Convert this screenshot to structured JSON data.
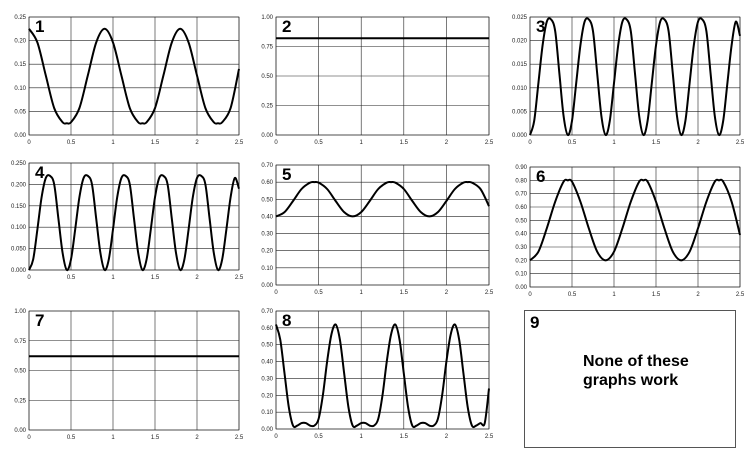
{
  "chart_data": [
    {
      "id": "1",
      "label": "1",
      "type": "line",
      "x_range": [
        0,
        2.5
      ],
      "ylim": [
        0,
        0.25
      ],
      "x_ticks": [
        "0",
        "0.5",
        "1",
        "1.5",
        "2",
        "2.5"
      ],
      "y_ticks": [
        "0.00",
        "0.05",
        "0.10",
        "0.15",
        "0.20",
        "0.25"
      ],
      "x": [
        0,
        0.1,
        0.2,
        0.3,
        0.4,
        0.45,
        0.5,
        0.6,
        0.7,
        0.8,
        0.9,
        1.0,
        1.1,
        1.2,
        1.3,
        1.35,
        1.4,
        1.5,
        1.6,
        1.7,
        1.8,
        1.9,
        2.0,
        2.1,
        2.2,
        2.25,
        2.3,
        2.4,
        2.5
      ],
      "y": [
        0.225,
        0.196,
        0.126,
        0.057,
        0.027,
        0.025,
        0.027,
        0.057,
        0.126,
        0.196,
        0.225,
        0.196,
        0.126,
        0.057,
        0.027,
        0.025,
        0.027,
        0.057,
        0.126,
        0.196,
        0.225,
        0.196,
        0.126,
        0.057,
        0.027,
        0.025,
        0.027,
        0.057,
        0.14
      ]
    },
    {
      "id": "2",
      "label": "2",
      "type": "line",
      "x_range": [
        0,
        2.5
      ],
      "ylim": [
        0,
        1.0
      ],
      "x_ticks": [
        "0",
        "0.5",
        "1",
        "1.5",
        "2",
        "2.5"
      ],
      "y_ticks": [
        "0.00",
        "0.25",
        "0.50",
        "0.75",
        "1.00"
      ],
      "x": [
        0,
        2.5
      ],
      "y": [
        0.82,
        0.82
      ]
    },
    {
      "id": "3",
      "label": "3",
      "type": "line",
      "x_range": [
        0,
        2.5
      ],
      "ylim": [
        0,
        0.025
      ],
      "x_ticks": [
        "0",
        "0.5",
        "1",
        "1.5",
        "2",
        "2.5"
      ],
      "y_ticks": [
        "0.000",
        "0.005",
        "0.010",
        "0.015",
        "0.020",
        "0.025"
      ],
      "x": [
        0,
        0.05,
        0.1,
        0.15,
        0.2,
        0.25,
        0.3,
        0.35,
        0.4,
        0.45,
        0.5,
        0.55,
        0.6,
        0.65,
        0.7,
        0.75,
        0.8,
        0.85,
        0.9,
        0.95,
        1.0,
        1.05,
        1.1,
        1.15,
        1.2,
        1.25,
        1.3,
        1.35,
        1.4,
        1.45,
        1.5,
        1.55,
        1.6,
        1.65,
        1.7,
        1.75,
        1.8,
        1.85,
        1.9,
        1.95,
        2.0,
        2.05,
        2.1,
        2.15,
        2.2,
        2.25,
        2.3,
        2.35,
        2.4,
        2.45,
        2.5
      ],
      "y": [
        0,
        0.003,
        0.011,
        0.019,
        0.024,
        0.0245,
        0.022,
        0.013,
        0.004,
        0.0,
        0.003,
        0.011,
        0.019,
        0.024,
        0.0245,
        0.022,
        0.013,
        0.004,
        0.0,
        0.003,
        0.011,
        0.019,
        0.024,
        0.0245,
        0.022,
        0.013,
        0.004,
        0.0,
        0.003,
        0.011,
        0.019,
        0.024,
        0.0245,
        0.022,
        0.013,
        0.004,
        0.0,
        0.003,
        0.011,
        0.019,
        0.024,
        0.0245,
        0.022,
        0.013,
        0.004,
        0.0,
        0.003,
        0.011,
        0.019,
        0.024,
        0.021
      ]
    },
    {
      "id": "4",
      "label": "4",
      "type": "line",
      "x_range": [
        0,
        2.5
      ],
      "ylim": [
        0,
        0.25
      ],
      "x_ticks": [
        "0",
        "0.5",
        "1",
        "1.5",
        "2",
        "2.5"
      ],
      "y_ticks": [
        "0.000",
        "0.050",
        "0.100",
        "0.150",
        "0.200",
        "0.250"
      ],
      "x": [
        0,
        0.05,
        0.1,
        0.15,
        0.2,
        0.25,
        0.3,
        0.35,
        0.4,
        0.45,
        0.5,
        0.55,
        0.6,
        0.65,
        0.7,
        0.75,
        0.8,
        0.85,
        0.9,
        0.95,
        1.0,
        1.05,
        1.1,
        1.15,
        1.2,
        1.25,
        1.3,
        1.35,
        1.4,
        1.45,
        1.5,
        1.55,
        1.6,
        1.65,
        1.7,
        1.75,
        1.8,
        1.85,
        1.9,
        1.95,
        2.0,
        2.05,
        2.1,
        2.15,
        2.2,
        2.25,
        2.3,
        2.35,
        2.4,
        2.45,
        2.5
      ],
      "y": [
        0,
        0.025,
        0.095,
        0.17,
        0.215,
        0.22,
        0.2,
        0.12,
        0.04,
        0.0,
        0.025,
        0.095,
        0.17,
        0.215,
        0.22,
        0.2,
        0.12,
        0.04,
        0.0,
        0.025,
        0.095,
        0.17,
        0.215,
        0.22,
        0.2,
        0.12,
        0.04,
        0.0,
        0.025,
        0.095,
        0.17,
        0.215,
        0.22,
        0.2,
        0.12,
        0.04,
        0.0,
        0.025,
        0.095,
        0.17,
        0.215,
        0.22,
        0.2,
        0.12,
        0.04,
        0.0,
        0.025,
        0.095,
        0.17,
        0.215,
        0.19
      ]
    },
    {
      "id": "5",
      "label": "5",
      "type": "line",
      "x_range": [
        0,
        2.5
      ],
      "ylim": [
        0,
        0.7
      ],
      "x_ticks": [
        "0",
        "0.5",
        "1",
        "1.5",
        "2",
        "2.5"
      ],
      "y_ticks": [
        "0.00",
        "0.10",
        "0.20",
        "0.30",
        "0.40",
        "0.50",
        "0.60",
        "0.70"
      ],
      "x": [
        0,
        0.1,
        0.2,
        0.3,
        0.4,
        0.45,
        0.5,
        0.6,
        0.7,
        0.8,
        0.9,
        1.0,
        1.1,
        1.2,
        1.3,
        1.35,
        1.4,
        1.5,
        1.6,
        1.7,
        1.8,
        1.9,
        2.0,
        2.1,
        2.2,
        2.25,
        2.3,
        2.4,
        2.5
      ],
      "y": [
        0.4,
        0.425,
        0.49,
        0.56,
        0.597,
        0.6,
        0.597,
        0.56,
        0.49,
        0.425,
        0.4,
        0.425,
        0.49,
        0.56,
        0.597,
        0.6,
        0.597,
        0.56,
        0.49,
        0.425,
        0.4,
        0.425,
        0.49,
        0.56,
        0.597,
        0.6,
        0.597,
        0.56,
        0.46
      ]
    },
    {
      "id": "6",
      "label": "6",
      "type": "line",
      "x_range": [
        0,
        2.5
      ],
      "ylim": [
        0,
        0.9
      ],
      "x_ticks": [
        "0",
        "0.5",
        "1",
        "1.5",
        "2",
        "2.5"
      ],
      "y_ticks": [
        "0.00",
        "0.10",
        "0.20",
        "0.30",
        "0.40",
        "0.50",
        "0.60",
        "0.70",
        "0.80",
        "0.90"
      ],
      "x": [
        0,
        0.1,
        0.2,
        0.3,
        0.4,
        0.45,
        0.5,
        0.6,
        0.7,
        0.8,
        0.9,
        1.0,
        1.1,
        1.2,
        1.3,
        1.35,
        1.4,
        1.5,
        1.6,
        1.7,
        1.8,
        1.9,
        2.0,
        2.1,
        2.2,
        2.25,
        2.3,
        2.4,
        2.5
      ],
      "y": [
        0.2,
        0.265,
        0.44,
        0.64,
        0.79,
        0.8,
        0.79,
        0.64,
        0.44,
        0.265,
        0.2,
        0.265,
        0.44,
        0.64,
        0.79,
        0.8,
        0.79,
        0.64,
        0.44,
        0.265,
        0.2,
        0.265,
        0.44,
        0.64,
        0.79,
        0.8,
        0.79,
        0.64,
        0.39
      ]
    },
    {
      "id": "7",
      "label": "7",
      "type": "line",
      "x_range": [
        0,
        2.5
      ],
      "ylim": [
        0,
        1.0
      ],
      "x_ticks": [
        "0",
        "0.5",
        "1",
        "1.5",
        "2",
        "2.5"
      ],
      "y_ticks": [
        "0.00",
        "0.25",
        "0.50",
        "0.75",
        "1.00"
      ],
      "x": [
        0,
        2.5
      ],
      "y": [
        0.62,
        0.62
      ]
    },
    {
      "id": "8",
      "label": "8",
      "type": "line",
      "x_range": [
        0,
        2.5
      ],
      "ylim": [
        0,
        0.7
      ],
      "x_ticks": [
        "0",
        "0.5",
        "1",
        "1.5",
        "2",
        "2.5"
      ],
      "y_ticks": [
        "0.00",
        "0.10",
        "0.20",
        "0.30",
        "0.40",
        "0.50",
        "0.60",
        "0.70"
      ],
      "x": [
        0,
        0.05,
        0.1,
        0.15,
        0.2,
        0.25,
        0.3,
        0.35,
        0.4,
        0.45,
        0.5,
        0.55,
        0.6,
        0.65,
        0.7,
        0.75,
        0.8,
        0.85,
        0.9,
        0.95,
        1.0,
        1.05,
        1.1,
        1.15,
        1.2,
        1.25,
        1.3,
        1.35,
        1.4,
        1.45,
        1.5,
        1.55,
        1.6,
        1.65,
        1.7,
        1.75,
        1.8,
        1.85,
        1.9,
        1.95,
        2.0,
        2.05,
        2.1,
        2.15,
        2.2,
        2.25,
        2.3,
        2.35,
        2.4,
        2.45,
        2.5
      ],
      "y": [
        0.62,
        0.53,
        0.33,
        0.13,
        0.02,
        0.02,
        0.035,
        0.035,
        0.02,
        0.02,
        0.06,
        0.2,
        0.4,
        0.56,
        0.62,
        0.53,
        0.33,
        0.13,
        0.02,
        0.02,
        0.035,
        0.035,
        0.02,
        0.02,
        0.06,
        0.2,
        0.4,
        0.56,
        0.62,
        0.53,
        0.33,
        0.13,
        0.02,
        0.02,
        0.035,
        0.035,
        0.02,
        0.02,
        0.06,
        0.2,
        0.4,
        0.56,
        0.62,
        0.53,
        0.33,
        0.13,
        0.02,
        0.02,
        0.035,
        0.035,
        0.24
      ]
    }
  ],
  "option9": {
    "label": "9",
    "text_line1": "None of these",
    "text_line2": "graphs work"
  }
}
